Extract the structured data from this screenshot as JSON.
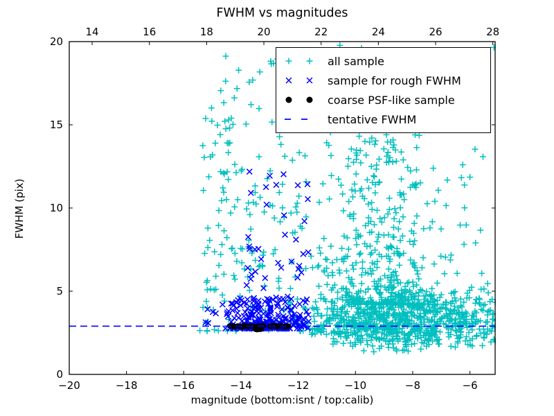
{
  "title": "FWHM vs magnitudes",
  "axes": {
    "xlabel": "magnitude (bottom:isnt / top:calib)",
    "ylabel": "FWHM (pix)",
    "x_bottom": {
      "min": -20,
      "max": -5.12,
      "tick_values": [
        -20,
        -18,
        -16,
        -14,
        -12,
        -10,
        -8,
        -6
      ],
      "tick_labels": [
        "−20",
        "−18",
        "−16",
        "−14",
        "−12",
        "−10",
        "−8",
        "−6"
      ]
    },
    "x_top": {
      "min": 13.2,
      "max": 28.08,
      "tick_values": [
        14,
        16,
        18,
        20,
        22,
        24,
        26,
        28
      ],
      "tick_labels": [
        "14",
        "16",
        "18",
        "20",
        "22",
        "24",
        "26",
        "28"
      ]
    },
    "y": {
      "min": 0,
      "max": 20,
      "tick_values": [
        0,
        5,
        10,
        15,
        20
      ],
      "tick_labels": [
        "0",
        "5",
        "10",
        "15",
        "20"
      ]
    }
  },
  "colors": {
    "cyan": "#00bfbf",
    "blue": "#0000ff",
    "black": "#000000",
    "frame": "#000000"
  },
  "chart_data": {
    "type": "scatter",
    "title": "FWHM vs magnitudes",
    "xlabel": "magnitude (bottom:isnt / top:calib)",
    "ylabel": "FWHM (pix)",
    "x_bottom_range": [
      -20,
      -5.12
    ],
    "x_top_range": [
      13.2,
      28.08
    ],
    "ylim": [
      0,
      20
    ],
    "grid": false,
    "legend_position": "upper right",
    "tentative_fwhm": 2.9,
    "seed": 7,
    "series": [
      {
        "name": "all sample",
        "marker": "plus",
        "color": "#00bfbf",
        "clusters": [
          {
            "n": 10,
            "mag": {
              "min": -15.05,
              "max": -13.3
            },
            "fwhm": {
              "min": 15.8,
              "max": 19.2
            }
          },
          {
            "n": 85,
            "mag": {
              "min": -15.45,
              "max": -13.9
            },
            "fwhm": {
              "min": 2.6,
              "max": 15.5,
              "pow": 1.6
            }
          },
          {
            "n": 105,
            "mag": {
              "min": -13.9,
              "max": -11.55
            },
            "fwhm": {
              "min": 2.6,
              "max": 16.5,
              "pow": 1.8
            }
          },
          {
            "n": 6,
            "mag": {
              "min": -13.8,
              "max": -12.4
            },
            "fwhm": {
              "min": 17.0,
              "max": 19.7
            }
          },
          {
            "n": 640,
            "mag": {
              "type": "gauss",
              "mean": -8.7,
              "sd": 1.25,
              "min": -11.45,
              "max": -5.1
            },
            "fwhm": {
              "type": "gauss",
              "mean": 3.2,
              "sd": 0.85,
              "min": 1.3,
              "max": 6.8
            }
          },
          {
            "n": 360,
            "mag": {
              "type": "gauss",
              "mean": -9.1,
              "sd": 0.95,
              "min": -11.3,
              "max": -6.2
            },
            "fwhm": {
              "min": 4.2,
              "max": 14.5,
              "pow": 2.2
            }
          },
          {
            "n": 80,
            "mag": {
              "min": -11.4,
              "max": -5.15
            },
            "fwhm": {
              "min": 6.0,
              "max": 19.9,
              "pow": 1.4
            }
          },
          {
            "n": 150,
            "mag": {
              "min": -7.3,
              "max": -5.08
            },
            "fwhm": {
              "type": "gauss",
              "mean": 3.2,
              "sd": 1.0,
              "min": 1.6,
              "max": 6.6
            }
          },
          {
            "n": 55,
            "mag": {
              "min": -11.55,
              "max": -10.2
            },
            "fwhm": {
              "min": 2.4,
              "max": 7.0,
              "pow": 1.6
            }
          }
        ]
      },
      {
        "name": "sample for rough FWHM",
        "marker": "x",
        "color": "#0000ff",
        "clusters": [
          {
            "n": 260,
            "mag": {
              "type": "gauss",
              "mean": -13.05,
              "sd": 0.8,
              "min": -14.75,
              "max": -11.5
            },
            "fwhm": {
              "min": 2.75,
              "max": 4.6,
              "pow": 2.6
            }
          },
          {
            "n": 38,
            "mag": {
              "min": -13.85,
              "max": -11.6
            },
            "fwhm": {
              "min": 4.6,
              "max": 12.3,
              "pow": 1.2
            }
          },
          {
            "n": 5,
            "mag": {
              "min": -15.35,
              "max": -14.7
            },
            "fwhm": {
              "min": 3.0,
              "max": 4.3
            }
          }
        ]
      },
      {
        "name": "coarse PSF-like sample",
        "marker": "dot",
        "color": "#000000",
        "points": [
          [
            -14.36,
            2.92
          ],
          [
            -14.24,
            2.88
          ],
          [
            -14.1,
            2.9
          ],
          [
            -13.97,
            2.87
          ],
          [
            -13.9,
            2.93
          ],
          [
            -13.76,
            2.88
          ],
          [
            -13.64,
            2.9
          ],
          [
            -13.52,
            2.86
          ],
          [
            -13.44,
            2.7
          ],
          [
            -13.37,
            2.9
          ],
          [
            -13.33,
            2.72
          ],
          [
            -13.25,
            2.92
          ],
          [
            -12.96,
            2.89
          ],
          [
            -12.87,
            2.93
          ],
          [
            -12.74,
            2.88
          ],
          [
            -12.6,
            2.91
          ],
          [
            -12.48,
            2.87
          ],
          [
            -12.38,
            2.9
          ]
        ]
      },
      {
        "name": "tentative FWHM",
        "marker": "dashed-line",
        "color": "#0000ff",
        "y": 2.9,
        "dash": [
          10,
          6
        ]
      }
    ]
  },
  "legend": {
    "items": [
      {
        "label": "all sample",
        "marker": "plus",
        "color": "#00bfbf"
      },
      {
        "label": "sample for rough FWHM",
        "marker": "x",
        "color": "#0000ff"
      },
      {
        "label": "coarse PSF-like sample",
        "marker": "dot",
        "color": "#000000"
      },
      {
        "label": "tentative FWHM",
        "marker": "dashed-line",
        "color": "#0000ff"
      }
    ]
  }
}
